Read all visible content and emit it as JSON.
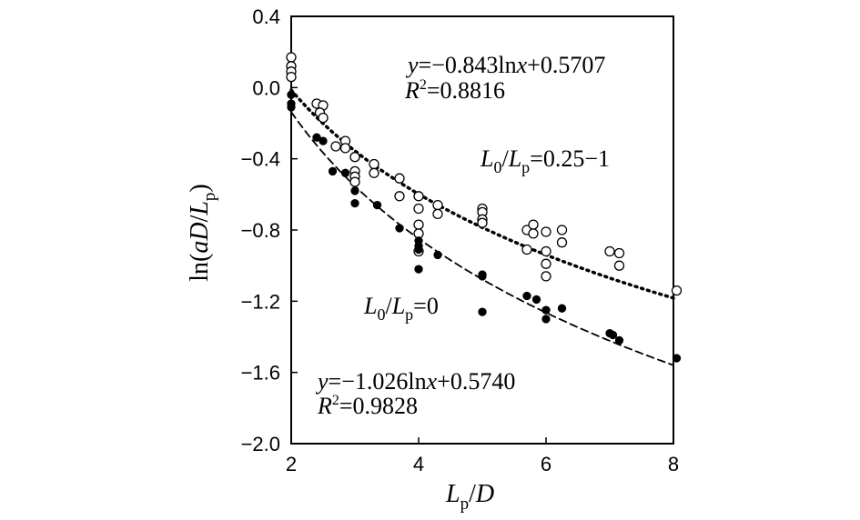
{
  "chart_data": {
    "type": "scatter",
    "xlabel": "Lp/D",
    "ylabel": "ln(aD/Lp)",
    "xlim": [
      2,
      8
    ],
    "ylim": [
      -2.0,
      0.4
    ],
    "x_ticks": [
      "2",
      "4",
      "6",
      "8"
    ],
    "y_ticks": [
      "0.4",
      "0.0",
      "−0.4",
      "−0.8",
      "−1.2",
      "−1.6",
      "−2.0"
    ],
    "grid": false,
    "series": [
      {
        "name": "L0/Lp=0.25−1",
        "marker": "open-circle",
        "points": [
          [
            2.0,
            0.17
          ],
          [
            2.0,
            0.12
          ],
          [
            2.0,
            0.09
          ],
          [
            2.0,
            0.06
          ],
          [
            2.4,
            -0.09
          ],
          [
            2.5,
            -0.1
          ],
          [
            2.45,
            -0.14
          ],
          [
            2.5,
            -0.17
          ],
          [
            2.7,
            -0.33
          ],
          [
            2.85,
            -0.3
          ],
          [
            2.85,
            -0.34
          ],
          [
            3.0,
            -0.39
          ],
          [
            3.0,
            -0.47
          ],
          [
            3.0,
            -0.5
          ],
          [
            3.0,
            -0.53
          ],
          [
            3.3,
            -0.43
          ],
          [
            3.3,
            -0.48
          ],
          [
            3.7,
            -0.51
          ],
          [
            3.7,
            -0.61
          ],
          [
            4.0,
            -0.61
          ],
          [
            4.0,
            -0.68
          ],
          [
            4.0,
            -0.77
          ],
          [
            4.0,
            -0.82
          ],
          [
            4.0,
            -0.92
          ],
          [
            4.3,
            -0.66
          ],
          [
            4.3,
            -0.71
          ],
          [
            5.0,
            -0.68
          ],
          [
            5.0,
            -0.7
          ],
          [
            5.0,
            -0.74
          ],
          [
            5.0,
            -0.76
          ],
          [
            5.7,
            -0.8
          ],
          [
            5.8,
            -0.77
          ],
          [
            5.8,
            -0.82
          ],
          [
            5.7,
            -0.91
          ],
          [
            6.0,
            -0.81
          ],
          [
            6.0,
            -0.92
          ],
          [
            6.0,
            -0.99
          ],
          [
            6.0,
            -1.06
          ],
          [
            6.25,
            -0.8
          ],
          [
            6.25,
            -0.87
          ],
          [
            7.0,
            -0.92
          ],
          [
            7.15,
            -0.93
          ],
          [
            7.15,
            -1.0
          ],
          [
            8.05,
            -1.14
          ]
        ],
        "fit": {
          "a": -0.843,
          "b": 0.5707,
          "style": "dotted",
          "equation": "y=−0.843lnx+0.5707",
          "r2": "R²=0.8816"
        }
      },
      {
        "name": "L0/Lp=0",
        "marker": "filled-circle",
        "points": [
          [
            2.0,
            -0.04
          ],
          [
            2.0,
            -0.09
          ],
          [
            2.0,
            -0.11
          ],
          [
            2.4,
            -0.28
          ],
          [
            2.5,
            -0.3
          ],
          [
            2.65,
            -0.47
          ],
          [
            2.85,
            -0.48
          ],
          [
            3.0,
            -0.58
          ],
          [
            3.0,
            -0.65
          ],
          [
            3.35,
            -0.66
          ],
          [
            3.7,
            -0.79
          ],
          [
            4.0,
            -0.86
          ],
          [
            4.0,
            -0.89
          ],
          [
            4.0,
            -0.91
          ],
          [
            4.0,
            -1.02
          ],
          [
            4.3,
            -0.94
          ],
          [
            5.0,
            -1.05
          ],
          [
            5.0,
            -1.06
          ],
          [
            5.0,
            -1.26
          ],
          [
            5.7,
            -1.17
          ],
          [
            5.85,
            -1.19
          ],
          [
            6.0,
            -1.25
          ],
          [
            6.0,
            -1.3
          ],
          [
            6.25,
            -1.24
          ],
          [
            7.0,
            -1.38
          ],
          [
            7.05,
            -1.39
          ],
          [
            7.15,
            -1.42
          ],
          [
            8.05,
            -1.52
          ]
        ],
        "fit": {
          "a": -1.026,
          "b": 0.574,
          "style": "dashed",
          "equation": "y=−1.026lnx+0.5740",
          "r2": "R²=0.9828"
        }
      }
    ]
  }
}
